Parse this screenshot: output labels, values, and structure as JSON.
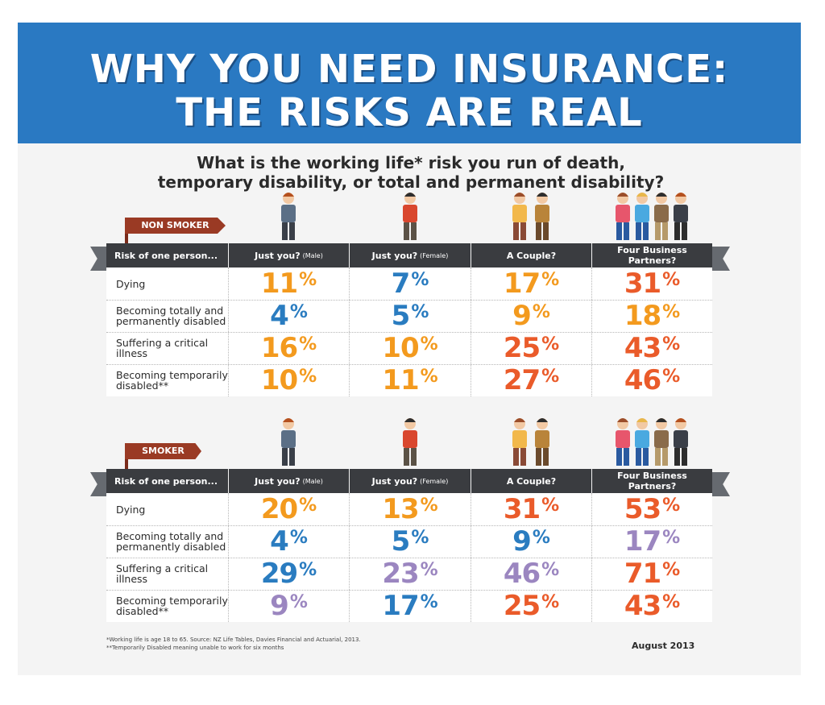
{
  "title_line1": "WHY YOU NEED INSURANCE:",
  "title_line2": "THE RISKS ARE REAL",
  "question_line1": "What is the working life* risk you run of death,",
  "question_line2": "temporary disability, or total and permanent disability?",
  "colors": {
    "banner": "#2a79c2",
    "header": "#3a3c40",
    "flag": "#9a3a24",
    "orange": "#f39a1e",
    "blue": "#2a7cc0",
    "red": "#ea5b2a",
    "purple": "#9b86c0"
  },
  "chart_data": [
    {
      "type": "table",
      "title": "NON SMOKER",
      "header_first": "Risk of one person...",
      "columns": [
        {
          "main": "Just you?",
          "sub": "(Male)"
        },
        {
          "main": "Just you?",
          "sub": "(Female)"
        },
        {
          "main": "A Couple?",
          "sub": ""
        },
        {
          "main": "Four Business Partners?",
          "sub": ""
        }
      ],
      "rows": [
        {
          "label": "Dying",
          "values": [
            11,
            7,
            17,
            31
          ],
          "colors": [
            "orange",
            "blue",
            "orange",
            "red"
          ]
        },
        {
          "label": "Becoming totally and permanently disabled",
          "values": [
            4,
            5,
            9,
            18
          ],
          "colors": [
            "blue",
            "blue",
            "orange",
            "orange"
          ]
        },
        {
          "label": "Suffering a critical illness",
          "values": [
            16,
            10,
            25,
            43
          ],
          "colors": [
            "orange",
            "orange",
            "red",
            "red"
          ]
        },
        {
          "label": "Becoming temporarily disabled**",
          "values": [
            10,
            11,
            27,
            46
          ],
          "colors": [
            "orange",
            "orange",
            "red",
            "red"
          ]
        }
      ]
    },
    {
      "type": "table",
      "title": "SMOKER",
      "header_first": "Risk of one person...",
      "columns": [
        {
          "main": "Just you?",
          "sub": "(Male)"
        },
        {
          "main": "Just you?",
          "sub": "(Female)"
        },
        {
          "main": "A Couple?",
          "sub": ""
        },
        {
          "main": "Four Business Partners?",
          "sub": ""
        }
      ],
      "rows": [
        {
          "label": "Dying",
          "values": [
            20,
            13,
            31,
            53
          ],
          "colors": [
            "orange",
            "orange",
            "red",
            "red"
          ]
        },
        {
          "label": "Becoming totally and permanently disabled",
          "values": [
            4,
            5,
            9,
            17
          ],
          "colors": [
            "blue",
            "blue",
            "blue",
            "purple"
          ]
        },
        {
          "label": "Suffering a critical illness",
          "values": [
            29,
            23,
            46,
            71
          ],
          "colors": [
            "blue",
            "purple",
            "purple",
            "red"
          ]
        },
        {
          "label": "Becoming temporarily disabled**",
          "values": [
            9,
            17,
            25,
            43
          ],
          "colors": [
            "purple",
            "blue",
            "red",
            "red"
          ]
        }
      ]
    }
  ],
  "footnote1": "*Working life is age 18 to 65. Source: NZ Life Tables, Davies Financial and Actuarial, 2013.",
  "footnote2": "**Temporarily Disabled meaning unable to work for six months",
  "date": "August 2013"
}
